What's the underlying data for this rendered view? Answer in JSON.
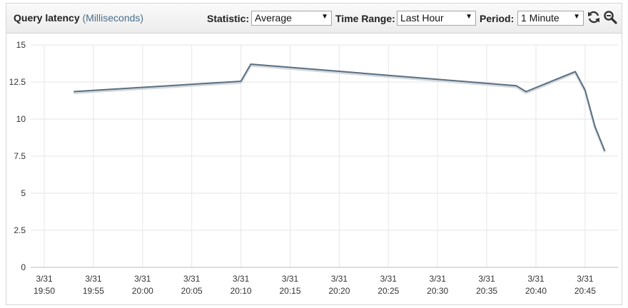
{
  "header": {
    "title": "Query latency",
    "unit": "(Milliseconds)",
    "statistic_label": "Statistic:",
    "statistic_value": "Average",
    "timerange_label": "Time Range:",
    "timerange_value": "Last Hour",
    "period_label": "Period:",
    "period_value": "1 Minute",
    "refresh_icon": "refresh-icon",
    "zoom_icon": "zoom-out-icon"
  },
  "colors": {
    "line": "#5a6f80",
    "grid": "#e6e6e6",
    "axis": "#bdbdbd"
  },
  "chart_data": {
    "type": "line",
    "title": "",
    "xlabel": "",
    "ylabel": "",
    "ylim": [
      0,
      15
    ],
    "yticks": [
      "0",
      "2.5",
      "5",
      "7.5",
      "10",
      "12.5",
      "15"
    ],
    "xticks": [
      {
        "time": "19:50",
        "date": "3/31"
      },
      {
        "time": "19:55",
        "date": "3/31"
      },
      {
        "time": "20:00",
        "date": "3/31"
      },
      {
        "time": "20:05",
        "date": "3/31"
      },
      {
        "time": "20:10",
        "date": "3/31"
      },
      {
        "time": "20:15",
        "date": "3/31"
      },
      {
        "time": "20:20",
        "date": "3/31"
      },
      {
        "time": "20:25",
        "date": "3/31"
      },
      {
        "time": "20:30",
        "date": "3/31"
      },
      {
        "time": "20:35",
        "date": "3/31"
      },
      {
        "time": "20:40",
        "date": "3/31"
      },
      {
        "time": "20:45",
        "date": "3/31"
      }
    ],
    "grid": true,
    "series": [
      {
        "points": [
          {
            "x": "19:53",
            "y": 11.85
          },
          {
            "x": "20:10",
            "y": 12.55
          },
          {
            "x": "20:11",
            "y": 13.7
          },
          {
            "x": "20:38",
            "y": 12.25
          },
          {
            "x": "20:39",
            "y": 11.85
          },
          {
            "x": "20:44",
            "y": 13.2
          },
          {
            "x": "20:45",
            "y": 11.95
          },
          {
            "x": "20:46",
            "y": 9.5
          },
          {
            "x": "20:47",
            "y": 7.85
          }
        ]
      }
    ]
  }
}
